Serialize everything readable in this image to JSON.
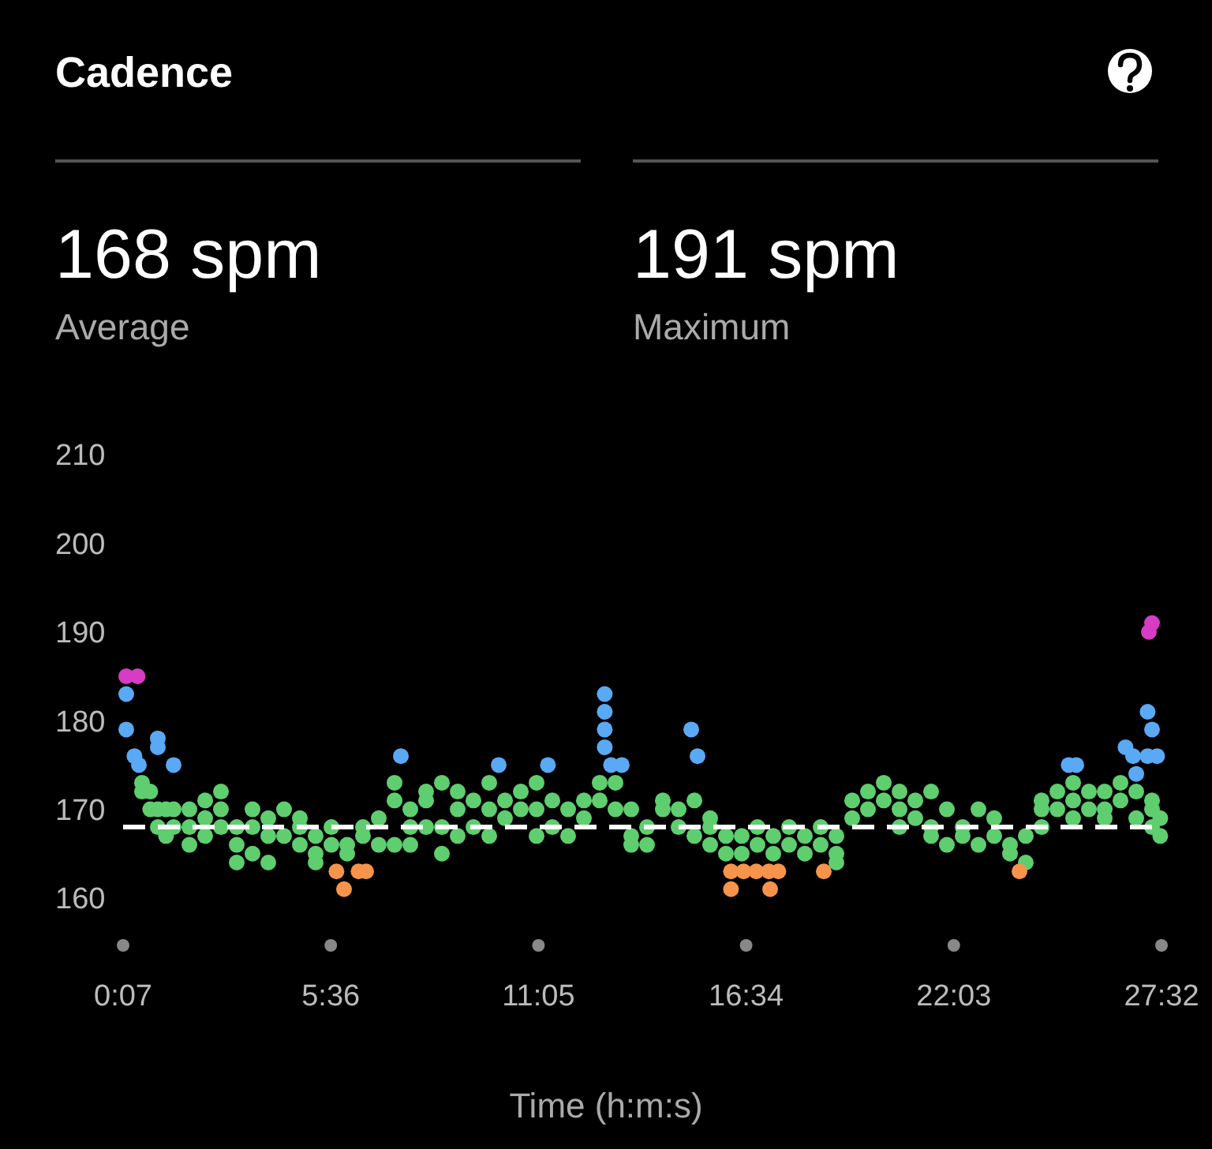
{
  "chart_data": {
    "type": "scatter",
    "title": "Cadence",
    "xlabel": "Time (h:m:s)",
    "annotations": [
      "168 spm",
      "Average",
      "191 spm",
      "Maximum"
    ],
    "xlim": [
      7,
      1652
    ],
    "ylim": [
      160,
      210
    ],
    "xticks": [
      {
        "value": 7,
        "label": "0:07"
      },
      {
        "value": 336,
        "label": "5:36"
      },
      {
        "value": 665,
        "label": "11:05"
      },
      {
        "value": 994,
        "label": "16:34"
      },
      {
        "value": 1323,
        "label": "22:03"
      },
      {
        "value": 1652,
        "label": "27:32"
      }
    ],
    "yticks": [
      160,
      170,
      180,
      190,
      200,
      210
    ],
    "grid": false,
    "marker": "circle",
    "ref_lines": [
      {
        "axis": "y",
        "value": 168,
        "color": "#ffffff",
        "line_style": "dashed"
      }
    ],
    "series": [
      {
        "color": "#d63cc4",
        "x": [
          12,
          30,
          1632,
          1637
        ],
        "values": [
          185,
          185,
          190,
          191
        ]
      },
      {
        "color": "#5aa9f5",
        "x": [
          12,
          12,
          25,
          32,
          62,
          62,
          87,
          447,
          602,
          680,
          770,
          770,
          770,
          770,
          780,
          797,
          907,
          917,
          1630,
          1637,
          1595,
          1607,
          1630,
          1645,
          1612,
          1517,
          1505
        ],
        "values": [
          183,
          179,
          176,
          175,
          178,
          177,
          175,
          176,
          175,
          175,
          183,
          181,
          179,
          177,
          175,
          175,
          179,
          176,
          181,
          179,
          177,
          176,
          176,
          176,
          174,
          175,
          175
        ]
      },
      {
        "color": "#5fce6f",
        "x": [
          37,
          37,
          50,
          50,
          62,
          62,
          75,
          75,
          87,
          87,
          112,
          112,
          112,
          137,
          137,
          137,
          162,
          162,
          162,
          187,
          187,
          187,
          212,
          212,
          212,
          237,
          237,
          237,
          262,
          262,
          287,
          287,
          287,
          312,
          312,
          312,
          337,
          337,
          362,
          362,
          387,
          387,
          412,
          412,
          437,
          437,
          437,
          462,
          462,
          462,
          487,
          487,
          487,
          512,
          512,
          512,
          537,
          537,
          537,
          562,
          562,
          587,
          587,
          587,
          612,
          612,
          637,
          637,
          662,
          662,
          662,
          687,
          687,
          712,
          712,
          737,
          737,
          762,
          762,
          787,
          787,
          812,
          812,
          812,
          837,
          837,
          862,
          862,
          887,
          887,
          912,
          912,
          937,
          937,
          937,
          962,
          962,
          987,
          987,
          1012,
          1012,
          1037,
          1037,
          1062,
          1062,
          1087,
          1087,
          1112,
          1112,
          1137,
          1137,
          1137,
          1162,
          1162,
          1187,
          1187,
          1212,
          1212,
          1237,
          1237,
          1237,
          1262,
          1262,
          1287,
          1287,
          1287,
          1312,
          1312,
          1337,
          1337,
          1362,
          1362,
          1387,
          1387,
          1412,
          1412,
          1437,
          1437,
          1462,
          1462,
          1462,
          1487,
          1487,
          1512,
          1512,
          1512,
          1537,
          1537,
          1562,
          1562,
          1562,
          1587,
          1587,
          1612,
          1612,
          1637,
          1637,
          1637,
          1650,
          1650
        ],
        "values": [
          173,
          172,
          170,
          172,
          168,
          170,
          170,
          167,
          168,
          170,
          166,
          170,
          168,
          169,
          167,
          171,
          168,
          170,
          172,
          166,
          164,
          168,
          165,
          168,
          170,
          164,
          167,
          169,
          167,
          170,
          169,
          166,
          168,
          167,
          165,
          164,
          166,
          168,
          165,
          166,
          167,
          168,
          169,
          166,
          173,
          171,
          166,
          170,
          168,
          166,
          168,
          171,
          172,
          173,
          168,
          165,
          170,
          172,
          167,
          168,
          171,
          173,
          170,
          167,
          171,
          169,
          172,
          170,
          173,
          170,
          167,
          171,
          168,
          170,
          167,
          169,
          171,
          173,
          171,
          173,
          170,
          167,
          170,
          166,
          168,
          166,
          171,
          170,
          170,
          168,
          171,
          167,
          169,
          166,
          168,
          167,
          165,
          165,
          167,
          166,
          168,
          165,
          167,
          168,
          166,
          167,
          165,
          166,
          168,
          165,
          164,
          167,
          169,
          171,
          172,
          170,
          173,
          171,
          172,
          170,
          168,
          171,
          169,
          168,
          167,
          172,
          166,
          170,
          167,
          168,
          170,
          166,
          169,
          167,
          165,
          166,
          164,
          167,
          168,
          170,
          171,
          172,
          170,
          173,
          171,
          169,
          172,
          170,
          172,
          170,
          169,
          173,
          171,
          169,
          172,
          171,
          170,
          168,
          169,
          167
        ]
      },
      {
        "color": "#f5944a",
        "x": [
          345,
          357,
          380,
          392,
          970,
          990,
          1010,
          1030,
          1045,
          970,
          1032,
          1117,
          1427
        ],
        "values": [
          163,
          161,
          163,
          163,
          163,
          163,
          163,
          163,
          163,
          161,
          161,
          163,
          163
        ]
      }
    ]
  }
}
